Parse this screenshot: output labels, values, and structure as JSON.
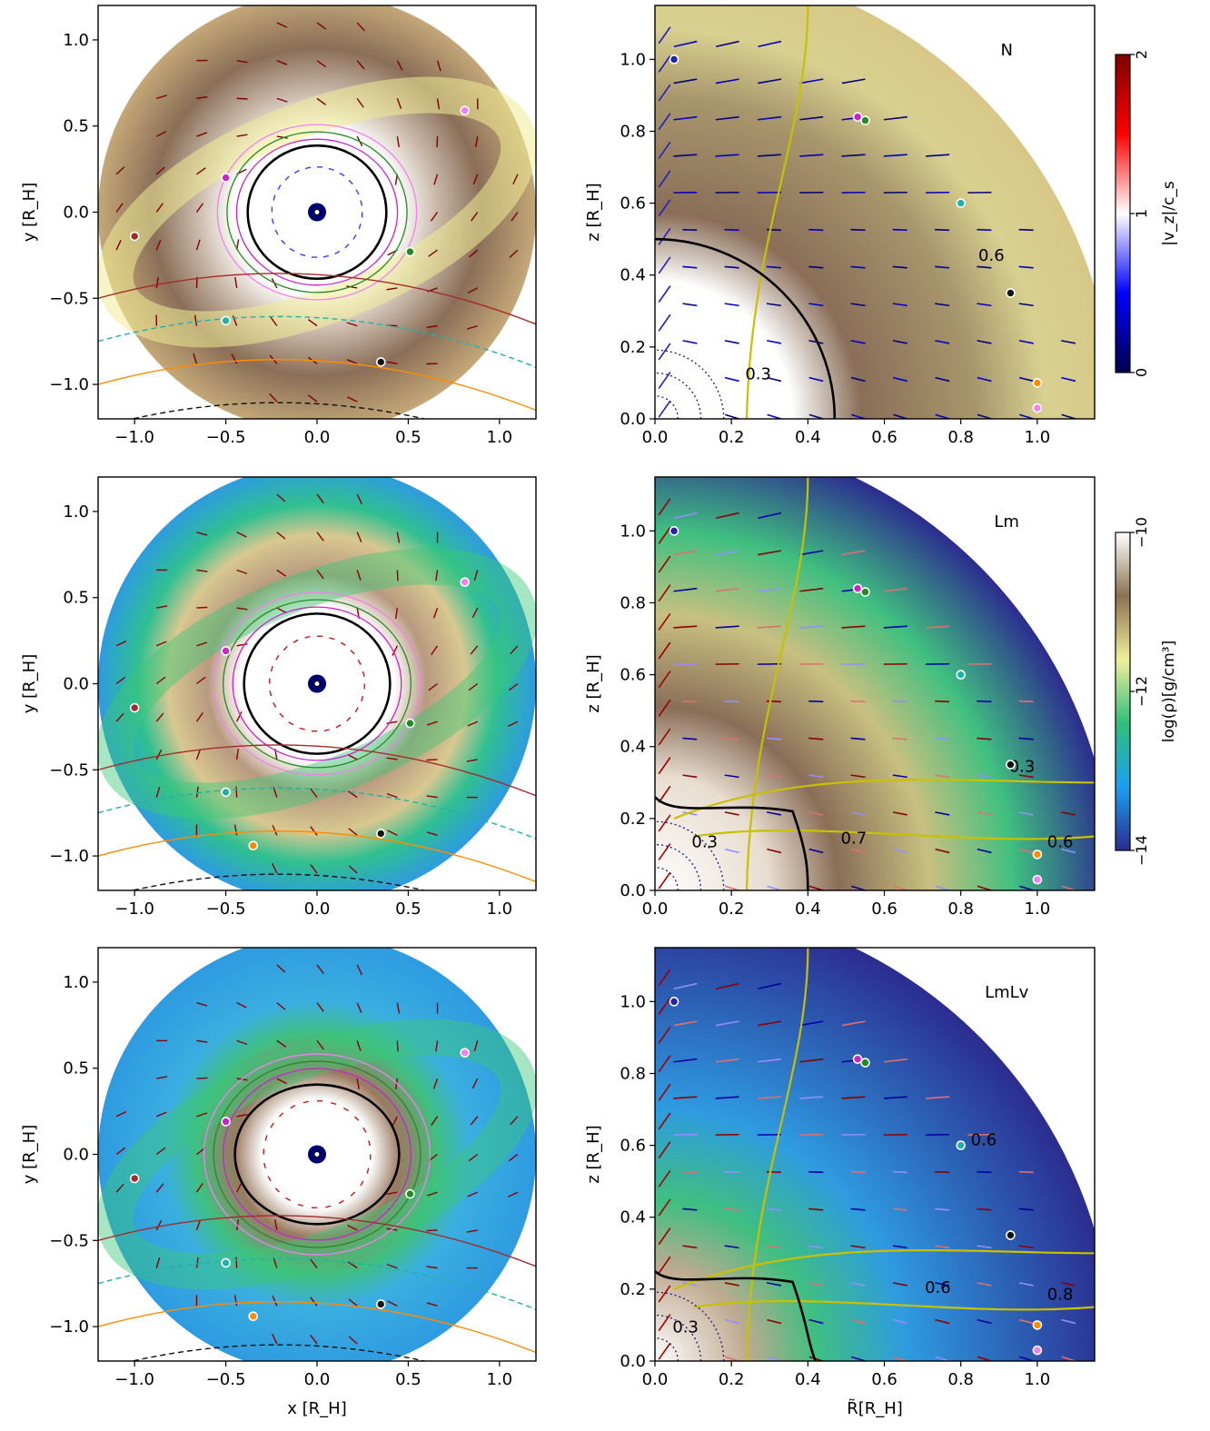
{
  "chart_data": {
    "type": "other",
    "panels": [
      {
        "id": "N-xy",
        "kind": "xy",
        "xlabel": "",
        "ylabel": "y [R_H]",
        "xlim": [
          -1.2,
          1.2
        ],
        "ylim": [
          -1.2,
          1.2
        ],
        "xticks": [
          "−1.0",
          "−0.5",
          "0.0",
          "0.5",
          "1.0"
        ],
        "yticks": [
          "−1.0",
          "−0.5",
          "0.0",
          "0.5",
          "1.0"
        ],
        "black_contour_radius": 0.38,
        "background_color": "#8e7460",
        "markers": [
          {
            "x": 0.81,
            "y": 0.59,
            "color": "#ee82ee"
          },
          {
            "x": -0.5,
            "y": 0.2,
            "color": "#cc22cc"
          },
          {
            "x": -1.0,
            "y": -0.14,
            "color": "#a52a2a"
          },
          {
            "x": 0.51,
            "y": -0.23,
            "color": "#228b22"
          },
          {
            "x": -0.5,
            "y": -0.63,
            "color": "#20b2aa"
          },
          {
            "x": 0.35,
            "y": -0.87,
            "color": "#111111"
          }
        ]
      },
      {
        "id": "N-rz",
        "kind": "rz",
        "label": "N",
        "xlabel": "",
        "ylabel": "z [R_H]",
        "xlim": [
          0,
          1.15
        ],
        "ylim": [
          0,
          1.15
        ],
        "xticks": [
          "0.0",
          "0.2",
          "0.4",
          "0.6",
          "0.8",
          "1.0"
        ],
        "yticks": [
          "0.0",
          "0.2",
          "0.4",
          "0.6",
          "0.8",
          "1.0"
        ],
        "contour_labels": [
          {
            "text": "0.6",
            "x": 0.88,
            "y": 0.44
          },
          {
            "text": "0.3",
            "x": 0.27,
            "y": 0.11
          }
        ],
        "black_contour_radius": 0.47,
        "markers": [
          {
            "x": 0.05,
            "y": 1.0,
            "color": "#2222aa"
          },
          {
            "x": 0.53,
            "y": 0.84,
            "color": "#cc22cc"
          },
          {
            "x": 0.55,
            "y": 0.83,
            "color": "#228b22"
          },
          {
            "x": 0.8,
            "y": 0.6,
            "color": "#20b2aa"
          },
          {
            "x": 0.93,
            "y": 0.35,
            "color": "#111111"
          },
          {
            "x": 1.0,
            "y": 0.1,
            "color": "#ff8c00"
          },
          {
            "x": 1.0,
            "y": 0.03,
            "color": "#ee82ee"
          }
        ]
      },
      {
        "id": "Lm-xy",
        "kind": "xy",
        "xlabel": "",
        "ylabel": "y [R_H]",
        "xlim": [
          -1.2,
          1.2
        ],
        "ylim": [
          -1.2,
          1.2
        ],
        "xticks": [
          "−1.0",
          "−0.5",
          "0.0",
          "0.5",
          "1.0"
        ],
        "yticks": [
          "−1.0",
          "−0.5",
          "0.0",
          "0.5",
          "1.0"
        ],
        "black_contour_radius": 0.4,
        "background_color": "#2e9be0",
        "markers": [
          {
            "x": 0.81,
            "y": 0.59,
            "color": "#ee82ee"
          },
          {
            "x": -0.5,
            "y": 0.19,
            "color": "#cc22cc"
          },
          {
            "x": -1.0,
            "y": -0.14,
            "color": "#a52a2a"
          },
          {
            "x": 0.51,
            "y": -0.23,
            "color": "#228b22"
          },
          {
            "x": -0.5,
            "y": -0.63,
            "color": "#20b2aa"
          },
          {
            "x": -0.35,
            "y": -0.94,
            "color": "#ff8c00"
          },
          {
            "x": 0.35,
            "y": -0.87,
            "color": "#111111"
          }
        ]
      },
      {
        "id": "Lm-rz",
        "kind": "rz",
        "label": "Lm",
        "xlabel": "",
        "ylabel": "z [R_H]",
        "xlim": [
          0,
          1.15
        ],
        "ylim": [
          0,
          1.15
        ],
        "xticks": [
          "0.0",
          "0.2",
          "0.4",
          "0.6",
          "0.8",
          "1.0"
        ],
        "yticks": [
          "0.0",
          "0.2",
          "0.4",
          "0.6",
          "0.8",
          "1.0"
        ],
        "contour_labels": [
          {
            "text": "0.3",
            "x": 0.96,
            "y": 0.33
          },
          {
            "text": "0.6",
            "x": 1.06,
            "y": 0.12
          },
          {
            "text": "0.7",
            "x": 0.52,
            "y": 0.13
          },
          {
            "text": "0.3",
            "x": 0.13,
            "y": 0.12
          }
        ],
        "black_contour_radius": 0.4,
        "markers": [
          {
            "x": 0.05,
            "y": 1.0,
            "color": "#2222aa"
          },
          {
            "x": 0.53,
            "y": 0.84,
            "color": "#cc22cc"
          },
          {
            "x": 0.55,
            "y": 0.83,
            "color": "#228b22"
          },
          {
            "x": 0.8,
            "y": 0.6,
            "color": "#20b2aa"
          },
          {
            "x": 0.93,
            "y": 0.35,
            "color": "#111111"
          },
          {
            "x": 1.0,
            "y": 0.1,
            "color": "#ff8c00"
          },
          {
            "x": 1.0,
            "y": 0.03,
            "color": "#ee82ee"
          }
        ]
      },
      {
        "id": "LmLv-xy",
        "kind": "xy",
        "xlabel": "x [R_H]",
        "ylabel": "y [R_H]",
        "xlim": [
          -1.2,
          1.2
        ],
        "ylim": [
          -1.2,
          1.2
        ],
        "xticks": [
          "−1.0",
          "−0.5",
          "0.0",
          "0.5",
          "1.0"
        ],
        "yticks": [
          "−1.0",
          "−0.5",
          "0.0",
          "0.5",
          "1.0"
        ],
        "black_contour_radius": 0.45,
        "background_color": "#2e9be0",
        "markers": [
          {
            "x": 0.81,
            "y": 0.59,
            "color": "#ee82ee"
          },
          {
            "x": -0.5,
            "y": 0.19,
            "color": "#cc22cc"
          },
          {
            "x": -1.0,
            "y": -0.14,
            "color": "#a52a2a"
          },
          {
            "x": 0.51,
            "y": -0.23,
            "color": "#228b22"
          },
          {
            "x": -0.5,
            "y": -0.63,
            "color": "#20b2aa"
          },
          {
            "x": -0.35,
            "y": -0.94,
            "color": "#ff8c00"
          },
          {
            "x": 0.35,
            "y": -0.87,
            "color": "#111111"
          }
        ]
      },
      {
        "id": "LmLv-rz",
        "kind": "rz",
        "label": "LmLv",
        "xlabel": "R̃[R_H]",
        "ylabel": "z [R_H]",
        "xlim": [
          0,
          1.15
        ],
        "ylim": [
          0,
          1.15
        ],
        "xticks": [
          "0.0",
          "0.2",
          "0.4",
          "0.6",
          "0.8",
          "1.0"
        ],
        "yticks": [
          "0.0",
          "0.2",
          "0.4",
          "0.6",
          "0.8",
          "1.0"
        ],
        "contour_labels": [
          {
            "text": "0.6",
            "x": 0.86,
            "y": 0.6
          },
          {
            "text": "0.6",
            "x": 0.74,
            "y": 0.19
          },
          {
            "text": "0.8",
            "x": 1.06,
            "y": 0.17
          },
          {
            "text": "0.3",
            "x": 0.08,
            "y": 0.08
          }
        ],
        "black_contour_radius": 0.42,
        "markers": [
          {
            "x": 0.05,
            "y": 1.0,
            "color": "#2222aa"
          },
          {
            "x": 0.53,
            "y": 0.84,
            "color": "#cc22cc"
          },
          {
            "x": 0.55,
            "y": 0.83,
            "color": "#228b22"
          },
          {
            "x": 0.8,
            "y": 0.6,
            "color": "#20b2aa"
          },
          {
            "x": 0.93,
            "y": 0.35,
            "color": "#111111"
          },
          {
            "x": 1.0,
            "y": 0.1,
            "color": "#ff8c00"
          },
          {
            "x": 1.0,
            "y": 0.03,
            "color": "#ee82ee"
          }
        ]
      }
    ],
    "colorbars": [
      {
        "id": "vz",
        "label": "|v_z|/c_s",
        "ticks": [
          "0",
          "1",
          "2"
        ],
        "range": [
          0,
          2
        ],
        "colors": [
          "#00004c",
          "#0000ff",
          "#ffffff",
          "#ff0000",
          "#7f0000"
        ]
      },
      {
        "id": "rho",
        "label": "log(ρ)[g/cm³]",
        "ticks": [
          "−14",
          "−12",
          "−10"
        ],
        "range": [
          -14,
          -10
        ],
        "colors": [
          "#2b2c8f",
          "#1aa0f0",
          "#2ec07a",
          "#f0ef9a",
          "#8b7150",
          "#ffffff"
        ]
      }
    ]
  }
}
